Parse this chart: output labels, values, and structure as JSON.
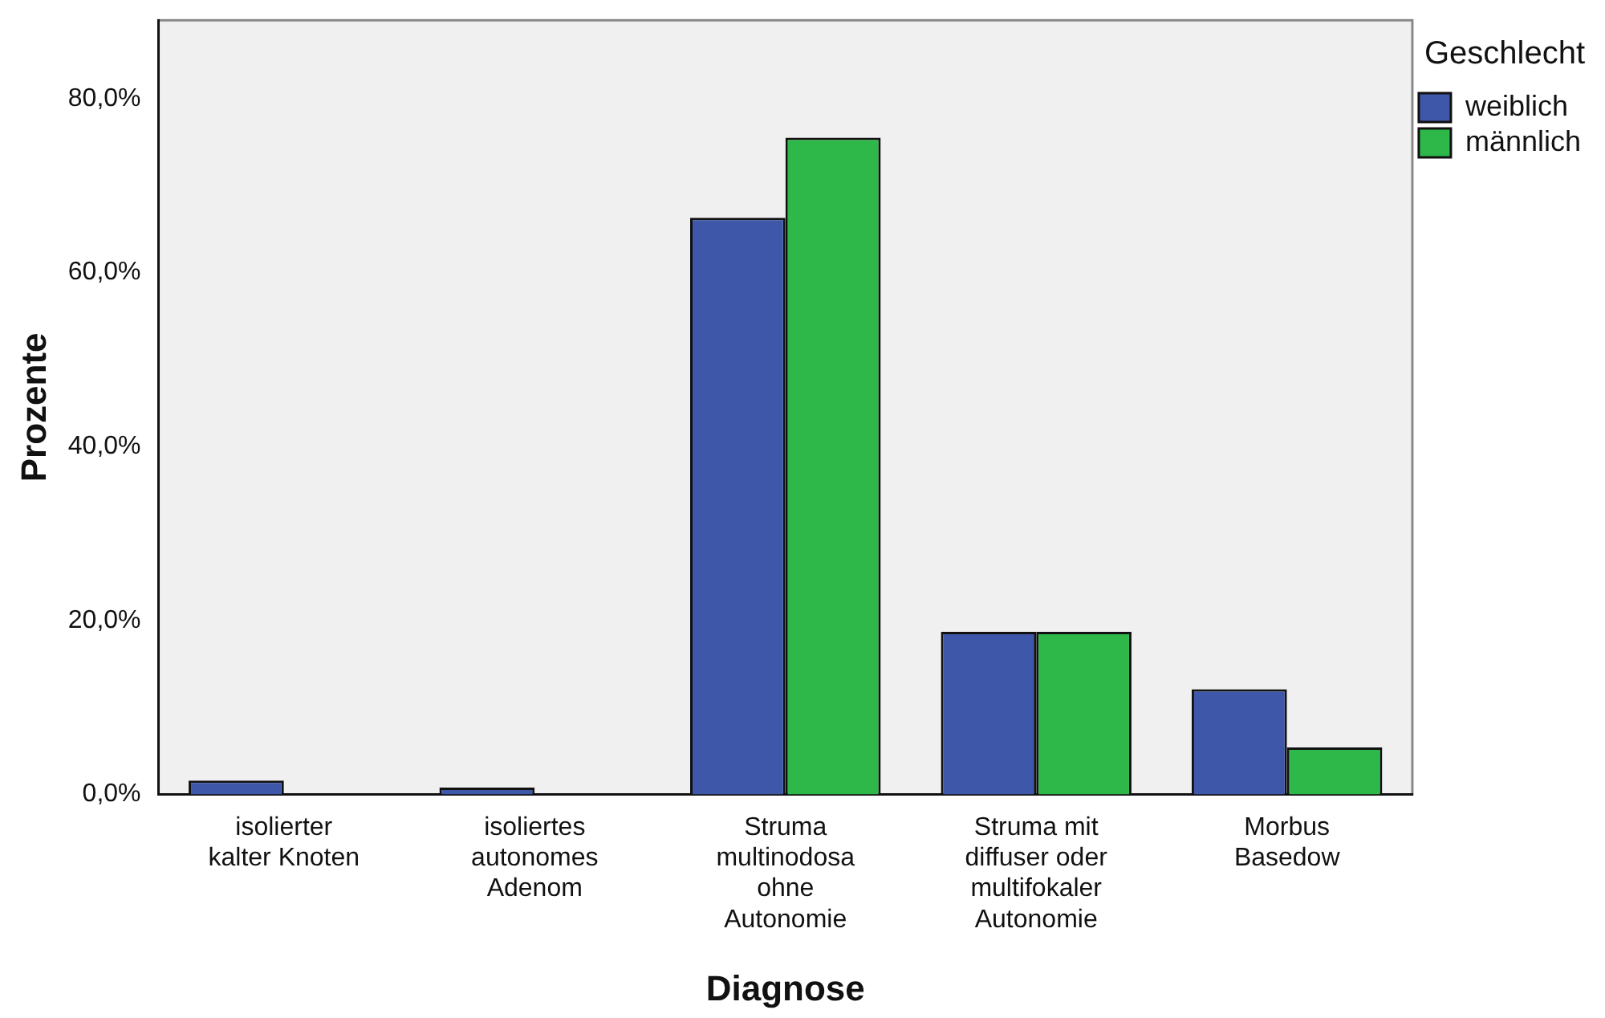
{
  "chart_data": {
    "type": "bar",
    "xlabel": "Diagnose",
    "ylabel": "Prozente",
    "legend_title": "Geschlecht",
    "categories": [
      "isolierter kalter Knoten",
      "isoliertes autonomes Adenom",
      "Struma multinodosa ohne Autonomie",
      "Struma mit diffuser oder multifokaler Autonomie",
      "Morbus Basedow"
    ],
    "series": [
      {
        "name": "weiblich",
        "color": "#3f57a8",
        "values": [
          1.6,
          0.8,
          66.3,
          18.7,
          12.1
        ]
      },
      {
        "name": "männlich",
        "color": "#2eb84a",
        "values": [
          0,
          0,
          75.5,
          18.7,
          5.4
        ]
      }
    ],
    "ylim": [
      0,
      89
    ],
    "yticks": [
      {
        "value": 0,
        "label": "0,0%"
      },
      {
        "value": 20,
        "label": "20,0%"
      },
      {
        "value": 40,
        "label": "40,0%"
      },
      {
        "value": 60,
        "label": "60,0%"
      },
      {
        "value": 80,
        "label": "80,0%"
      }
    ],
    "grid": false,
    "legend": "top right"
  }
}
